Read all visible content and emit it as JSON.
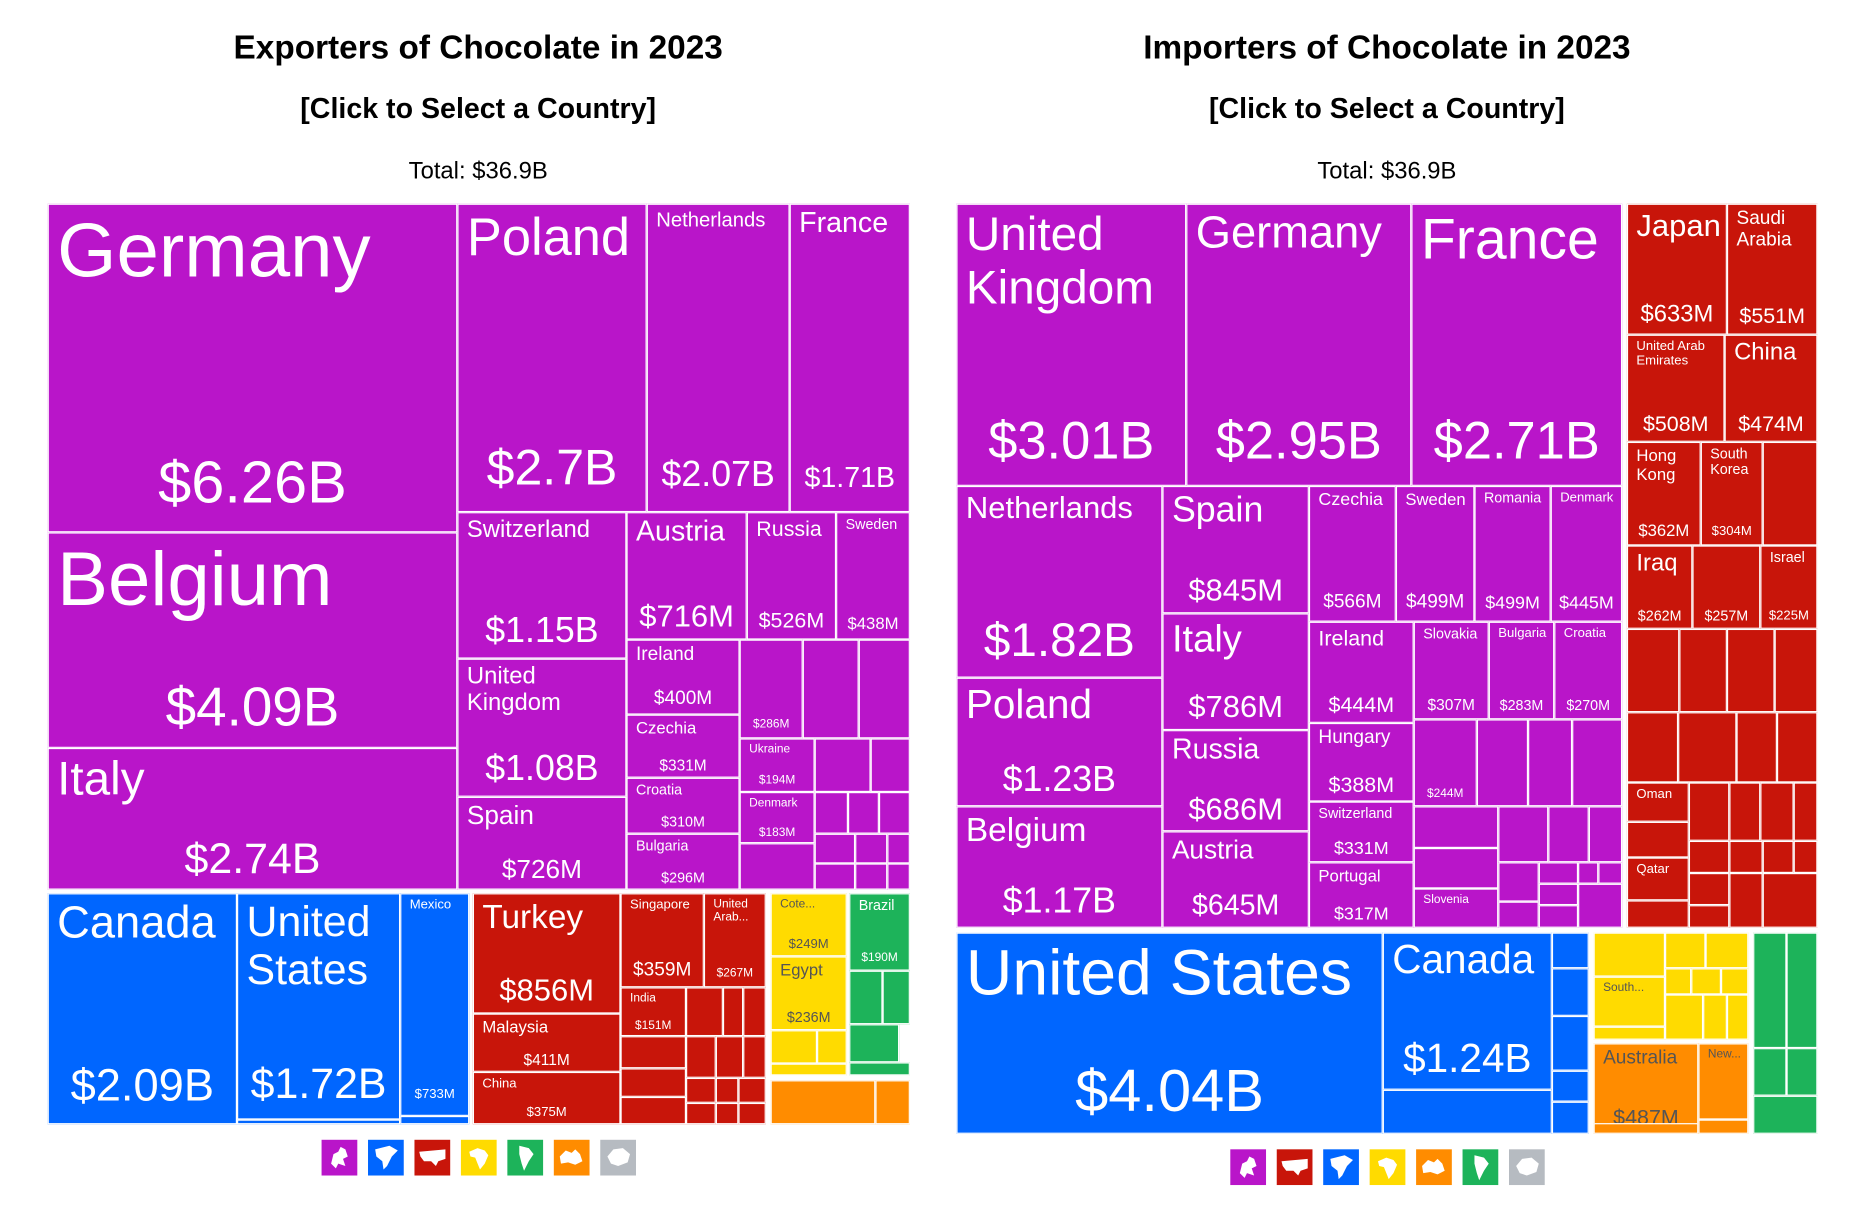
{
  "colors": {
    "eu": "#B915C9",
    "na": "#0066FF",
    "as": "#C8150A",
    "af": "#FFDB00",
    "sa": "#1DB35A",
    "oc": "#FF8C00",
    "an": "#B6BBC1"
  },
  "chart_data": [
    {
      "type": "treemap",
      "title": "Exporters of Chocolate in 2023",
      "subtitle": "[Click to Select a Country]",
      "total": "Total: $36.9B",
      "legend_icons": [
        "europe-icon",
        "north-america-icon",
        "asia-icon",
        "africa-icon",
        "south-america-icon",
        "oceania-icon",
        "antarctica-icon"
      ],
      "items": [
        {
          "name": "Germany",
          "value": "$6.26B",
          "region": "eu"
        },
        {
          "name": "Belgium",
          "value": "$4.09B",
          "region": "eu"
        },
        {
          "name": "Italy",
          "value": "$2.74B",
          "region": "eu"
        },
        {
          "name": "Poland",
          "value": "$2.7B",
          "region": "eu"
        },
        {
          "name": "Netherlands",
          "value": "$2.07B",
          "region": "eu"
        },
        {
          "name": "France",
          "value": "$1.71B",
          "region": "eu"
        },
        {
          "name": "Switzerland",
          "value": "$1.15B",
          "region": "eu"
        },
        {
          "name": "Austria",
          "value": "$716M",
          "region": "eu"
        },
        {
          "name": "Russia",
          "value": "$526M",
          "region": "eu"
        },
        {
          "name": "Sweden",
          "value": "$438M",
          "region": "eu"
        },
        {
          "name": "United Kingdom",
          "value": "$1.08B",
          "region": "eu"
        },
        {
          "name": "Spain",
          "value": "$726M",
          "region": "eu"
        },
        {
          "name": "Ireland",
          "value": "$400M",
          "region": "eu"
        },
        {
          "name": "Czechia",
          "value": "$331M",
          "region": "eu"
        },
        {
          "name": "Croatia",
          "value": "$310M",
          "region": "eu"
        },
        {
          "name": "Bulgaria",
          "value": "$296M",
          "region": "eu"
        },
        {
          "name": "",
          "value": "$286M",
          "region": "eu"
        },
        {
          "name": "Ukraine",
          "value": "$194M",
          "region": "eu"
        },
        {
          "name": "Denmark",
          "value": "$183M",
          "region": "eu"
        },
        {
          "name": "Canada",
          "value": "$2.09B",
          "region": "na"
        },
        {
          "name": "United States",
          "value": "$1.72B",
          "region": "na"
        },
        {
          "name": "Mexico",
          "value": "$733M",
          "region": "na"
        },
        {
          "name": "Turkey",
          "value": "$856M",
          "region": "as"
        },
        {
          "name": "Malaysia",
          "value": "$411M",
          "region": "as"
        },
        {
          "name": "China",
          "value": "$375M",
          "region": "as"
        },
        {
          "name": "Singapore",
          "value": "$359M",
          "region": "as"
        },
        {
          "name": "United Arab...",
          "value": "$267M",
          "region": "as"
        },
        {
          "name": "India",
          "value": "$151M",
          "region": "as"
        },
        {
          "name": "Cote...",
          "value": "$249M",
          "region": "af"
        },
        {
          "name": "Egypt",
          "value": "$236M",
          "region": "af"
        },
        {
          "name": "Brazil",
          "value": "$190M",
          "region": "sa"
        }
      ]
    },
    {
      "type": "treemap",
      "title": "Importers of Chocolate in 2023",
      "subtitle": "[Click to Select a Country]",
      "total": "Total: $36.9B",
      "legend_icons": [
        "europe-icon",
        "asia-icon",
        "north-america-icon",
        "africa-icon",
        "oceania-icon",
        "south-america-icon",
        "antarctica-icon"
      ],
      "items": [
        {
          "name": "United Kingdom",
          "value": "$3.01B",
          "region": "eu"
        },
        {
          "name": "Germany",
          "value": "$2.95B",
          "region": "eu"
        },
        {
          "name": "France",
          "value": "$2.71B",
          "region": "eu"
        },
        {
          "name": "Netherlands",
          "value": "$1.82B",
          "region": "eu"
        },
        {
          "name": "Poland",
          "value": "$1.23B",
          "region": "eu"
        },
        {
          "name": "Belgium",
          "value": "$1.17B",
          "region": "eu"
        },
        {
          "name": "Spain",
          "value": "$845M",
          "region": "eu"
        },
        {
          "name": "Italy",
          "value": "$786M",
          "region": "eu"
        },
        {
          "name": "Russia",
          "value": "$686M",
          "region": "eu"
        },
        {
          "name": "Austria",
          "value": "$645M",
          "region": "eu"
        },
        {
          "name": "Czechia",
          "value": "$566M",
          "region": "eu"
        },
        {
          "name": "Sweden",
          "value": "$499M",
          "region": "eu"
        },
        {
          "name": "Romania",
          "value": "$499M",
          "region": "eu"
        },
        {
          "name": "Denmark",
          "value": "$445M",
          "region": "eu"
        },
        {
          "name": "Ireland",
          "value": "$444M",
          "region": "eu"
        },
        {
          "name": "Slovakia",
          "value": "$307M",
          "region": "eu"
        },
        {
          "name": "Bulgaria",
          "value": "$283M",
          "region": "eu"
        },
        {
          "name": "Croatia",
          "value": "$270M",
          "region": "eu"
        },
        {
          "name": "Hungary",
          "value": "$388M",
          "region": "eu"
        },
        {
          "name": "Switzerland",
          "value": "$331M",
          "region": "eu"
        },
        {
          "name": "Portugal",
          "value": "$317M",
          "region": "eu"
        },
        {
          "name": "",
          "value": "$244M",
          "region": "eu"
        },
        {
          "name": "Slovenia",
          "value": "",
          "region": "eu"
        },
        {
          "name": "Japan",
          "value": "$633M",
          "region": "as"
        },
        {
          "name": "Saudi Arabia",
          "value": "$551M",
          "region": "as"
        },
        {
          "name": "United Arab Emirates",
          "value": "$508M",
          "region": "as"
        },
        {
          "name": "China",
          "value": "$474M",
          "region": "as"
        },
        {
          "name": "Hong Kong",
          "value": "$362M",
          "region": "as"
        },
        {
          "name": "South Korea",
          "value": "$304M",
          "region": "as"
        },
        {
          "name": "Iraq",
          "value": "$262M",
          "region": "as"
        },
        {
          "name": "",
          "value": "$257M",
          "region": "as"
        },
        {
          "name": "Israel",
          "value": "$225M",
          "region": "as"
        },
        {
          "name": "Oman",
          "value": "",
          "region": "as"
        },
        {
          "name": "Qatar",
          "value": "",
          "region": "as"
        },
        {
          "name": "United States",
          "value": "$4.04B",
          "region": "na"
        },
        {
          "name": "Canada",
          "value": "$1.24B",
          "region": "na"
        },
        {
          "name": "South...",
          "value": "",
          "region": "af"
        },
        {
          "name": "Australia",
          "value": "$487M",
          "region": "oc"
        },
        {
          "name": "New...",
          "value": "",
          "region": "oc"
        }
      ]
    }
  ]
}
